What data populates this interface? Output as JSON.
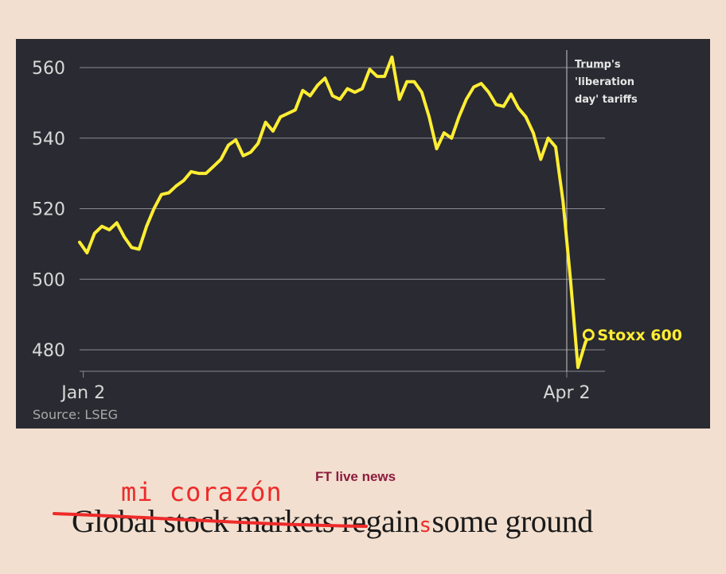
{
  "chart_data": {
    "type": "line",
    "ylim": [
      474,
      563
    ],
    "y_ticks": [
      480,
      500,
      520,
      540,
      560
    ],
    "x_range": [
      0,
      137
    ],
    "x_ticks": [
      {
        "x": 1,
        "label": "Jan 2"
      },
      {
        "x": 131,
        "label": "Apr 2"
      }
    ],
    "grid": true,
    "source": "Source: LSEG",
    "annotation": {
      "x": 131,
      "lines": [
        "Trump's",
        "'liberation",
        "day' tariffs"
      ]
    },
    "series": [
      {
        "name": "Stoxx 600",
        "color": "#ffee33",
        "points": [
          [
            0,
            510.5
          ],
          [
            2,
            507.5
          ],
          [
            4,
            513
          ],
          [
            6,
            515
          ],
          [
            8,
            514
          ],
          [
            10,
            516
          ],
          [
            12,
            512
          ],
          [
            14,
            509
          ],
          [
            16,
            508.5
          ],
          [
            18,
            515
          ],
          [
            20,
            520
          ],
          [
            22,
            524
          ],
          [
            24,
            524.5
          ],
          [
            26,
            526.5
          ],
          [
            28,
            528
          ],
          [
            30,
            530.5
          ],
          [
            32,
            530
          ],
          [
            34,
            530
          ],
          [
            36,
            532
          ],
          [
            38,
            534
          ],
          [
            40,
            538
          ],
          [
            42,
            539.5
          ],
          [
            44,
            535
          ],
          [
            46,
            536
          ],
          [
            48,
            538.5
          ],
          [
            50,
            544.5
          ],
          [
            52,
            542
          ],
          [
            54,
            546
          ],
          [
            56,
            547
          ],
          [
            58,
            548
          ],
          [
            60,
            553.5
          ],
          [
            62,
            552
          ],
          [
            64,
            555
          ],
          [
            66,
            557
          ],
          [
            68,
            552
          ],
          [
            70,
            551
          ],
          [
            72,
            554
          ],
          [
            74,
            553
          ],
          [
            76,
            554
          ],
          [
            78,
            559.5
          ],
          [
            80,
            557.5
          ],
          [
            82,
            557.5
          ],
          [
            84,
            563
          ],
          [
            86,
            551
          ],
          [
            88,
            556
          ],
          [
            90,
            556
          ],
          [
            92,
            553
          ],
          [
            94,
            546
          ],
          [
            96,
            537
          ],
          [
            98,
            541.5
          ],
          [
            100,
            540
          ],
          [
            102,
            546
          ],
          [
            104,
            551
          ],
          [
            106,
            554.5
          ],
          [
            108,
            555.5
          ],
          [
            110,
            553
          ],
          [
            112,
            549.5
          ],
          [
            114,
            549
          ],
          [
            116,
            552.5
          ],
          [
            118,
            548.5
          ],
          [
            120,
            546
          ],
          [
            122,
            541.5
          ],
          [
            124,
            534
          ],
          [
            126,
            540
          ],
          [
            128,
            537.5
          ],
          [
            130,
            522
          ],
          [
            132,
            500
          ],
          [
            134,
            475
          ],
          [
            136,
            482
          ]
        ],
        "end_label": "Stoxx 600"
      }
    ]
  },
  "caption": {
    "kicker": "FT live news",
    "handwritten": "mi corazón",
    "headline_a": "Global stock markets",
    "headline_b": " regain",
    "headline_insert": "s",
    "headline_c": "some ground"
  }
}
